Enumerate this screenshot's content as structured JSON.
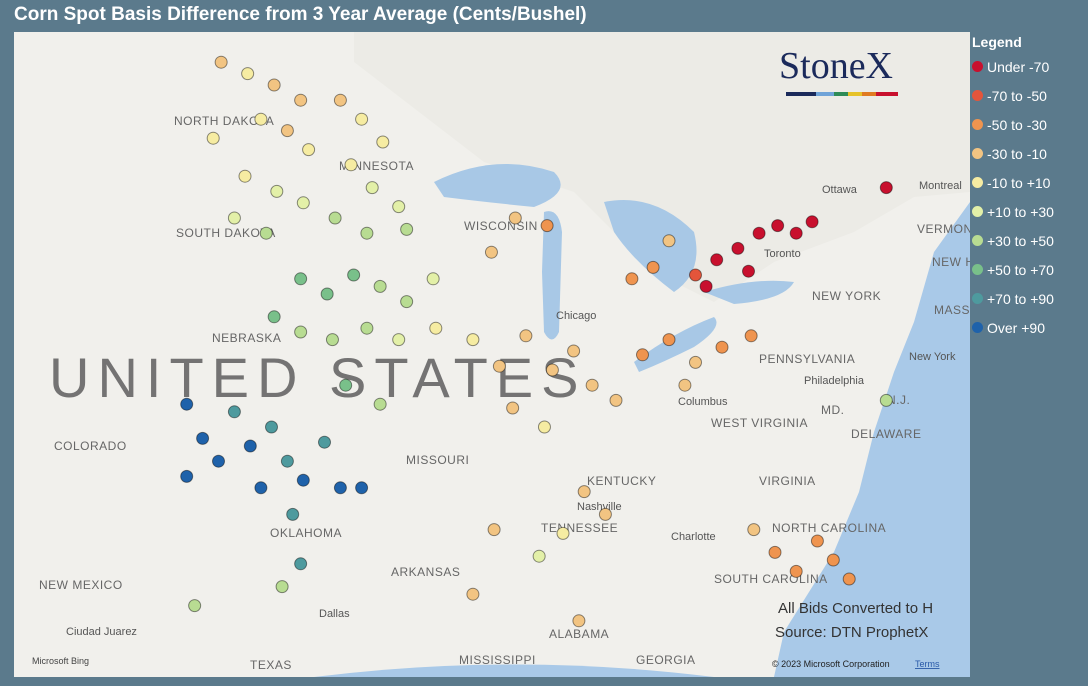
{
  "header": {
    "title": "Corn Spot Basis Difference from 3 Year Average (Cents/Bushel)"
  },
  "legend": {
    "title": "Legend",
    "items": [
      {
        "label": "Under -70",
        "color": "#c8102e"
      },
      {
        "label": "-70 to -50",
        "color": "#e4553b"
      },
      {
        "label": "-50 to -30",
        "color": "#ef944f"
      },
      {
        "label": "-30 to -10",
        "color": "#f2c482"
      },
      {
        "label": "-10 to +10",
        "color": "#f6eca2"
      },
      {
        "label": "+10 to +30",
        "color": "#e3f0a8"
      },
      {
        "label": "+30 to +50",
        "color": "#b8dc92"
      },
      {
        "label": "+50 to +70",
        "color": "#79c08a"
      },
      {
        "label": "+70 to +90",
        "color": "#4e9a9e"
      },
      {
        "label": "Over +90",
        "color": "#1f62aa"
      }
    ]
  },
  "logo": "StoneX",
  "notes": [
    "All Bids Converted to H",
    "Source: DTN ProphetX"
  ],
  "map": {
    "country": "UNITED STATES",
    "states": [
      "NORTH DAKOTA",
      "MINNESOTA",
      "SOUTH DAKOTA",
      "NEBRASKA",
      "COLORADO",
      "MISSOURI",
      "OKLAHOMA",
      "KENTUCKY",
      "TENNESSEE",
      "ARKANSAS",
      "NEW MEXICO",
      "TEXAS",
      "MISSISSIPPI",
      "ALABAMA",
      "GEORGIA",
      "SOUTH CAROLINA",
      "NORTH CAROLINA",
      "VIRGINIA",
      "WEST VIRGINIA",
      "PENNSYLVANIA",
      "NEW YORK",
      "VERMONT",
      "MASS.",
      "MD.",
      "N.J.",
      "DELAWARE",
      "WISCONSIN",
      "NEW HAMPS"
    ],
    "cities": [
      "Chicago",
      "Nashville",
      "Charlotte",
      "Columbus",
      "Philadelphia",
      "New York",
      "Ottawa",
      "Montreal",
      "Toronto",
      "Dallas",
      "Ciudad Juarez"
    ],
    "attribution": [
      "Microsoft Bing",
      "© 2023 Microsoft Corporation",
      "Terms"
    ]
  },
  "points": [
    [
      -100.5,
      48.5,
      3
    ],
    [
      -99.5,
      48.2,
      4
    ],
    [
      -98.5,
      47.9,
      3
    ],
    [
      -97.5,
      47.5,
      3
    ],
    [
      -99,
      47,
      4
    ],
    [
      -98,
      46.7,
      3
    ],
    [
      -100.8,
      46.5,
      4
    ],
    [
      -97.2,
      46.2,
      4
    ],
    [
      -99.6,
      45.5,
      4
    ],
    [
      -98.4,
      45.1,
      5
    ],
    [
      -97.4,
      44.8,
      5
    ],
    [
      -100,
      44.4,
      5
    ],
    [
      -98.8,
      44,
      6
    ],
    [
      -96,
      47.5,
      3
    ],
    [
      -95.2,
      47,
      4
    ],
    [
      -94.4,
      46.4,
      4
    ],
    [
      -95.6,
      45.8,
      4
    ],
    [
      -94.8,
      45.2,
      5
    ],
    [
      -93.8,
      44.7,
      5
    ],
    [
      -96.2,
      44.4,
      6
    ],
    [
      -95,
      44,
      6
    ],
    [
      -93.5,
      44.1,
      6
    ],
    [
      -97.5,
      42.8,
      7
    ],
    [
      -96.5,
      42.4,
      7
    ],
    [
      -95.5,
      42.9,
      7
    ],
    [
      -94.5,
      42.6,
      6
    ],
    [
      -93.5,
      42.2,
      6
    ],
    [
      -92.5,
      42.8,
      5
    ],
    [
      -98.5,
      41.8,
      7
    ],
    [
      -97.5,
      41.4,
      6
    ],
    [
      -96.3,
      41.2,
      6
    ],
    [
      -95,
      41.5,
      6
    ],
    [
      -93.8,
      41.2,
      5
    ],
    [
      -92.4,
      41.5,
      4
    ],
    [
      -101.8,
      39.5,
      9
    ],
    [
      -101.2,
      38.6,
      9
    ],
    [
      -100.6,
      38,
      9
    ],
    [
      -101.8,
      37.6,
      9
    ],
    [
      -100,
      39.3,
      8
    ],
    [
      -99.4,
      38.4,
      9
    ],
    [
      -98.6,
      38.9,
      8
    ],
    [
      -98,
      38,
      8
    ],
    [
      -97.4,
      37.5,
      9
    ],
    [
      -99,
      37.3,
      9
    ],
    [
      -96.6,
      38.5,
      8
    ],
    [
      -96,
      37.3,
      9
    ],
    [
      -97.8,
      36.6,
      8
    ],
    [
      -97.5,
      35.3,
      8
    ],
    [
      -98.2,
      34.7,
      6
    ],
    [
      -101.5,
      34.2,
      6
    ],
    [
      -95.2,
      37.3,
      9
    ],
    [
      -95.8,
      40,
      7
    ],
    [
      -94.5,
      39.5,
      6
    ],
    [
      -91,
      41.2,
      4
    ],
    [
      -90,
      40.5,
      3
    ],
    [
      -89,
      41.3,
      3
    ],
    [
      -88,
      40.4,
      3
    ],
    [
      -87.2,
      40.9,
      3
    ],
    [
      -86.5,
      40,
      3
    ],
    [
      -85.6,
      39.6,
      3
    ],
    [
      -89.5,
      39.4,
      3
    ],
    [
      -88.3,
      38.9,
      4
    ],
    [
      -90.3,
      43.5,
      3
    ],
    [
      -89.4,
      44.4,
      3
    ],
    [
      -88.2,
      44.2,
      2
    ],
    [
      -84.6,
      40.8,
      2
    ],
    [
      -83.6,
      41.2,
      2
    ],
    [
      -82.6,
      40.6,
      3
    ],
    [
      -81.6,
      41,
      2
    ],
    [
      -83,
      40,
      3
    ],
    [
      -80.5,
      41.3,
      2
    ],
    [
      -85,
      42.8,
      2
    ],
    [
      -84.2,
      43.1,
      2
    ],
    [
      -83.6,
      43.8,
      3
    ],
    [
      -82.6,
      42.9,
      1
    ],
    [
      -81.8,
      43.3,
      0
    ],
    [
      -81,
      43.6,
      0
    ],
    [
      -80.2,
      44,
      0
    ],
    [
      -79.5,
      44.2,
      0
    ],
    [
      -78.8,
      44,
      0
    ],
    [
      -78.2,
      44.3,
      0
    ],
    [
      -80.6,
      43,
      0
    ],
    [
      -82.2,
      42.6,
      0
    ],
    [
      -75.4,
      45.2,
      0
    ],
    [
      -78,
      35.9,
      2
    ],
    [
      -77.4,
      35.4,
      2
    ],
    [
      -78.8,
      35.1,
      2
    ],
    [
      -79.6,
      35.6,
      2
    ],
    [
      -80.4,
      36.2,
      3
    ],
    [
      -76.8,
      34.9,
      2
    ],
    [
      -86.8,
      37.2,
      3
    ],
    [
      -86,
      36.6,
      3
    ],
    [
      -87.6,
      36.1,
      4
    ],
    [
      -88.5,
      35.5,
      5
    ],
    [
      -90.2,
      36.2,
      3
    ],
    [
      -91,
      34.5,
      3
    ],
    [
      -87,
      33.8,
      3
    ],
    [
      -75.4,
      39.6,
      6
    ]
  ]
}
